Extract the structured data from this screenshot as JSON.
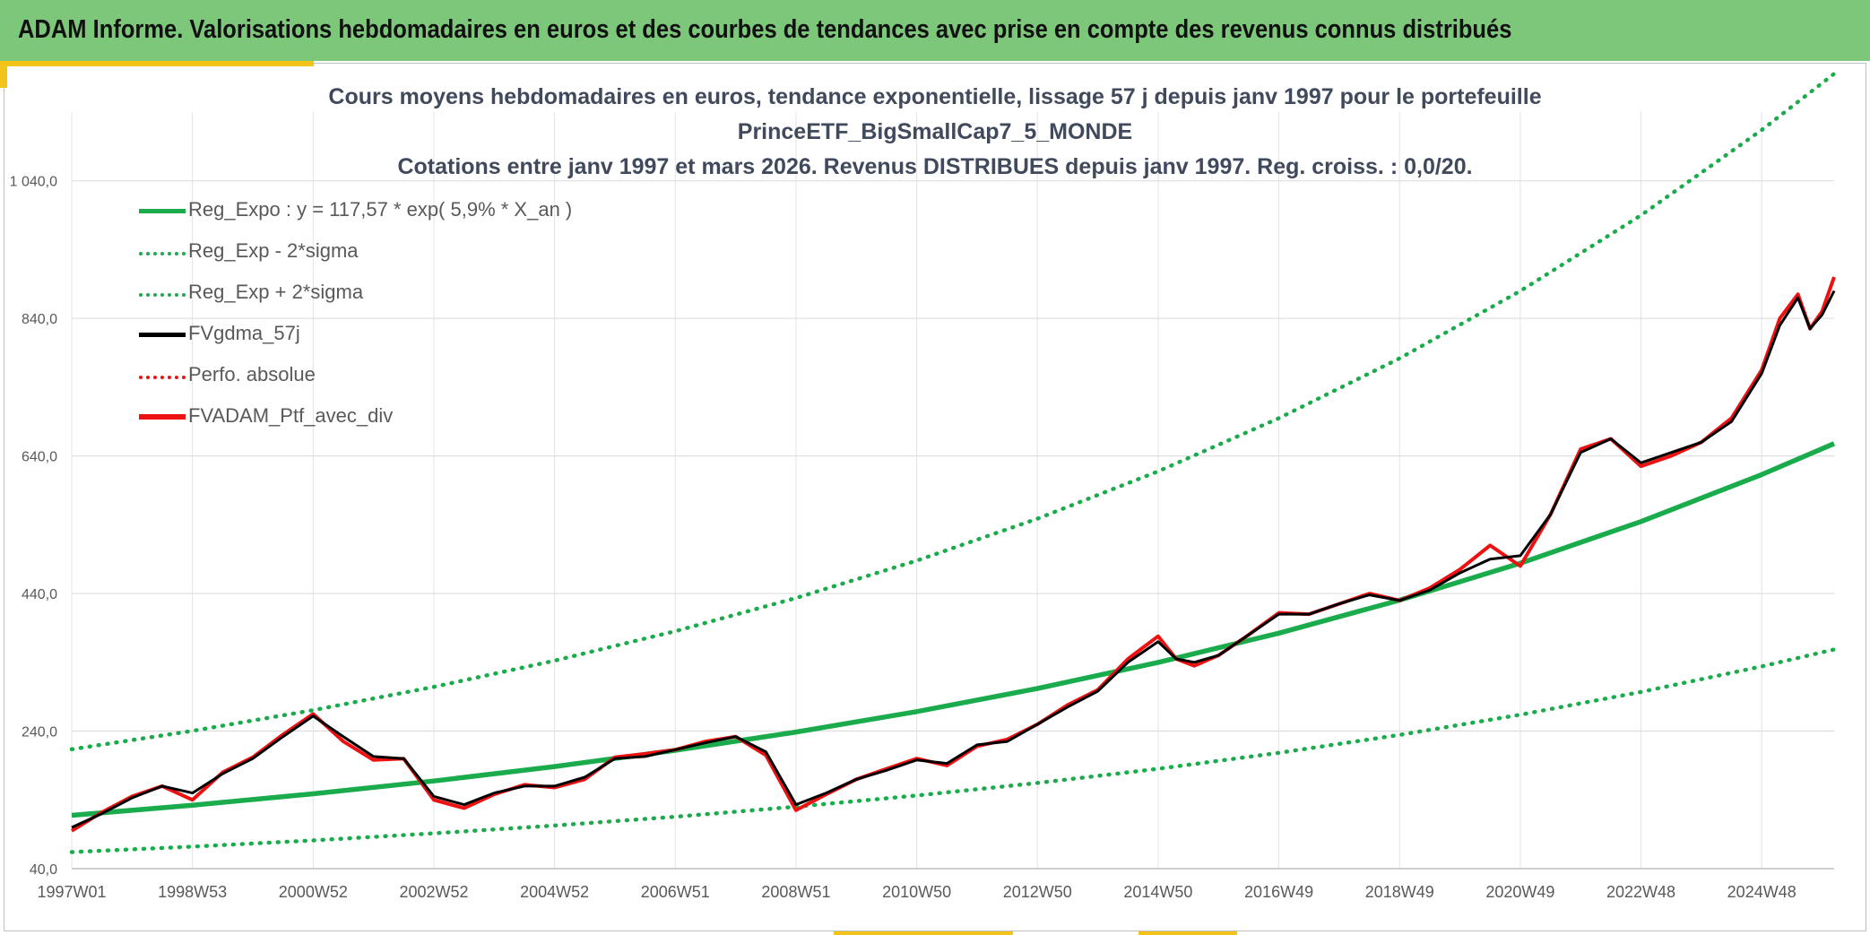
{
  "header": {
    "title": "ADAM Informe. Valorisations hebdomadaires en euros et des courbes de tendances avec prise en compte des revenus connus distribués"
  },
  "colors": {
    "header_bg": "#7dc77a",
    "accent": "#f2c318",
    "trend": "#1aac4c",
    "smooth": "#000000",
    "portfolio": "#ee1111"
  },
  "chart_data": {
    "type": "line",
    "title_lines": [
      "Cours moyens hebdomadaires en euros, tendance exponentielle, lissage 57 j depuis janv 1997 pour le portefeuille",
      "PrinceETF_BigSmallCap7_5_MONDE",
      "Cotations entre janv 1997 et mars 2026. Revenus DISTRIBUES depuis janv 1997. Reg. croiss. : 0,0/20."
    ],
    "xlabel": "",
    "ylabel": "",
    "x_unit": "years since janv 1997",
    "xlim": [
      0,
      29.2
    ],
    "ylim": [
      40,
      1140
    ],
    "y_ticks": [
      "40,0",
      "240,0",
      "440,0",
      "640,0",
      "840,0",
      "1 040,0"
    ],
    "y_tick_values": [
      40,
      240,
      440,
      640,
      840,
      1040
    ],
    "x_ticks": [
      "1997W01",
      "1998W53",
      "2000W52",
      "2002W52",
      "2004W52",
      "2006W51",
      "2008W51",
      "2010W50",
      "2012W50",
      "2014W50",
      "2016W49",
      "2018W49",
      "2020W49",
      "2022W48",
      "2024W48"
    ],
    "x_tick_values": [
      0,
      2,
      4,
      6,
      8,
      10,
      12,
      14,
      16,
      18,
      20,
      22,
      24,
      26,
      28
    ],
    "grid": true,
    "legend_position": "top-left",
    "series": [
      {
        "name": "Reg_Expo : y = 117,57 * exp( 5,9% *  X_an )",
        "style": "solid-green",
        "x": [
          0,
          2,
          4,
          6,
          8,
          10,
          12,
          14,
          16,
          18,
          20,
          22,
          24,
          26,
          28,
          29.2
        ],
        "values": [
          117.57,
          132.3,
          148.8,
          167.5,
          188.4,
          212.0,
          238.6,
          268.4,
          302.0,
          339.9,
          382.4,
          430.3,
          484.1,
          544.7,
          612.9,
          658.0
        ]
      },
      {
        "name": "Reg_Exp - 2*sigma",
        "style": "dotted-green",
        "x": [
          0,
          2,
          4,
          6,
          8,
          10,
          12,
          14,
          16,
          18,
          20,
          22,
          24,
          26,
          28,
          29.2
        ],
        "values": [
          64.1,
          72.1,
          81.1,
          91.3,
          102.7,
          115.5,
          130.0,
          146.3,
          164.6,
          185.2,
          208.4,
          234.5,
          263.8,
          296.9,
          334.0,
          358.6
        ]
      },
      {
        "name": "Reg_Exp + 2*sigma",
        "style": "dotted-green",
        "x": [
          0,
          2,
          4,
          6,
          8,
          10,
          12,
          14,
          16,
          18,
          20,
          22,
          24,
          26,
          28,
          29.2
        ],
        "values": [
          213.6,
          240.3,
          270.4,
          304.3,
          342.4,
          385.2,
          433.5,
          487.8,
          548.8,
          617.6,
          694.9,
          781.9,
          879.8,
          989.9,
          1113.9,
          1195.7
        ]
      },
      {
        "name": "FVgdma_57j",
        "style": "solid-black",
        "x": [
          0,
          0.5,
          1,
          1.5,
          2,
          2.5,
          3,
          3.5,
          4,
          4.5,
          5,
          5.5,
          6,
          6.5,
          7,
          7.5,
          8,
          8.5,
          9,
          9.5,
          10,
          10.5,
          11,
          11.5,
          12,
          12.5,
          13,
          13.5,
          14,
          14.5,
          15,
          15.5,
          16,
          16.5,
          17,
          17.5,
          18,
          18.3,
          18.6,
          19,
          19.5,
          20,
          20.5,
          21,
          21.5,
          22,
          22.5,
          23,
          23.5,
          24,
          24.5,
          25,
          25.5,
          26,
          26.5,
          27,
          27.5,
          28,
          28.3,
          28.6,
          28.8,
          29.0,
          29.2
        ],
        "values": [
          100,
          120,
          143,
          160,
          150,
          178,
          200,
          232,
          262,
          232,
          203,
          200,
          145,
          133,
          150,
          160,
          160,
          173,
          200,
          203,
          213,
          223,
          232,
          210,
          133,
          150,
          170,
          183,
          198,
          193,
          220,
          225,
          250,
          275,
          298,
          340,
          370,
          345,
          340,
          350,
          380,
          410,
          410,
          425,
          438,
          430,
          445,
          470,
          490,
          495,
          555,
          645,
          665,
          630,
          645,
          660,
          690,
          760,
          830,
          870,
          825,
          845,
          880
        ]
      },
      {
        "name": "Perfo. absolue",
        "style": "dotted-red",
        "x": [],
        "values": []
      },
      {
        "name": "FVADAM_Ptf_avec_div",
        "style": "solid-red",
        "x": [
          0,
          0.5,
          1,
          1.5,
          2,
          2.5,
          3,
          3.5,
          4,
          4.5,
          5,
          5.5,
          6,
          6.5,
          7,
          7.5,
          8,
          8.5,
          9,
          9.5,
          10,
          10.5,
          11,
          11.5,
          12,
          12.5,
          13,
          13.5,
          14,
          14.5,
          15,
          15.5,
          16,
          16.5,
          17,
          17.5,
          18,
          18.3,
          18.6,
          19,
          19.5,
          20,
          20.5,
          21,
          21.5,
          22,
          22.5,
          23,
          23.5,
          24,
          24.5,
          25,
          25.5,
          26,
          26.5,
          27,
          27.5,
          28,
          28.3,
          28.6,
          28.8,
          29.0,
          29.2
        ],
        "values": [
          95,
          122,
          145,
          160,
          140,
          180,
          202,
          235,
          265,
          225,
          198,
          200,
          140,
          128,
          148,
          162,
          158,
          170,
          202,
          207,
          213,
          225,
          232,
          205,
          125,
          148,
          170,
          185,
          200,
          190,
          218,
          228,
          250,
          278,
          300,
          345,
          378,
          345,
          335,
          350,
          380,
          412,
          410,
          425,
          440,
          430,
          448,
          475,
          510,
          480,
          555,
          650,
          665,
          625,
          640,
          660,
          695,
          765,
          840,
          875,
          825,
          850,
          900
        ]
      }
    ]
  }
}
